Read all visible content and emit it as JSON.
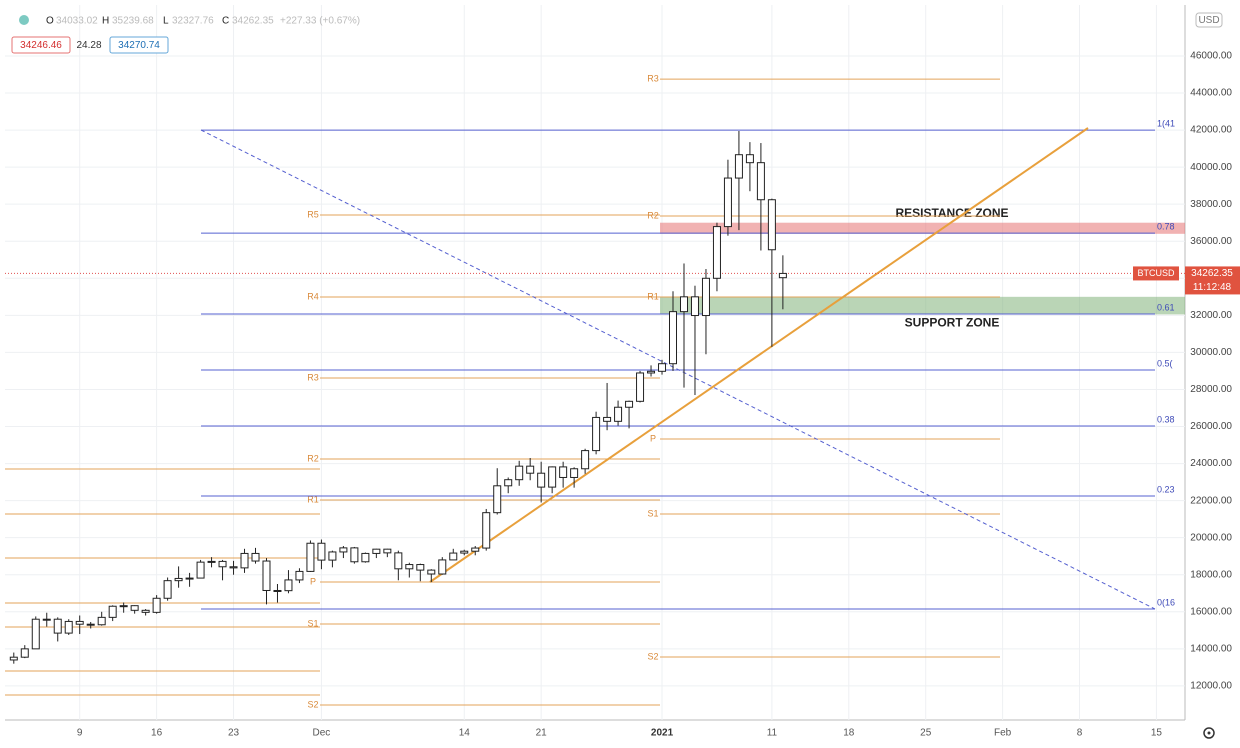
{
  "header": {
    "open_label": "O",
    "high_label": "H",
    "low_label": "L",
    "close_label": "C",
    "change": "+227.33 (+0.67%)",
    "bid": "34246.46",
    "spread": "24.28",
    "ask": "34270.74",
    "currency": "USD"
  },
  "chart_data": {
    "type": "candlestick",
    "symbol": "BTCUSD",
    "countdown": "11:12:48",
    "x": [
      -6,
      -5,
      -4,
      -3,
      -2,
      -1,
      0,
      1,
      2,
      3,
      4,
      5,
      6,
      7,
      8,
      9,
      10,
      11,
      12,
      13,
      14,
      15,
      16,
      17,
      18,
      19,
      20,
      21,
      22,
      23,
      24,
      25,
      26,
      27,
      28,
      29,
      30,
      31,
      32,
      33,
      34,
      35,
      36,
      37,
      38,
      39,
      40,
      41,
      42,
      43,
      44,
      45,
      46,
      47,
      48,
      49,
      50,
      51,
      52,
      53,
      54,
      55,
      56,
      57,
      58,
      59,
      60,
      61,
      62,
      63,
      64
    ],
    "open": [
      13400,
      13550,
      14000,
      15600,
      15600,
      14850,
      15480,
      15330,
      15300,
      15700,
      16300,
      16330,
      16080,
      15970,
      16730,
      17680,
      17800,
      17820,
      18680,
      18720,
      18430,
      18370,
      19150,
      18740,
      17150,
      17140,
      17720,
      18180,
      19700,
      18790,
      19230,
      19450,
      18700,
      19150,
      19380,
      19180,
      18320,
      18550,
      18250,
      18040,
      18800,
      19170,
      19270,
      19440,
      21350,
      22800,
      23130,
      23860,
      23480,
      22730,
      23820,
      23250,
      23720,
      24700,
      26490,
      26280,
      27040,
      27360,
      28890,
      28980,
      29390,
      32200,
      33000,
      31990,
      34000,
      36790,
      39410,
      40670,
      40240,
      38240,
      34033.02
    ],
    "high": [
      13800,
      14200,
      15750,
      15950,
      15700,
      15600,
      15800,
      15450,
      16000,
      16350,
      16500,
      16350,
      16150,
      16900,
      17850,
      18450,
      18100,
      18800,
      18950,
      18800,
      18750,
      19400,
      19450,
      18900,
      17500,
      18250,
      18350,
      19850,
      19900,
      19300,
      19550,
      19500,
      19200,
      19400,
      19400,
      19300,
      18650,
      18600,
      18300,
      18950,
      19400,
      19350,
      19550,
      21550,
      23750,
      23250,
      24150,
      24300,
      24100,
      23850,
      24100,
      23800,
      24800,
      26800,
      28350,
      27400,
      27400,
      29000,
      29300,
      29600,
      33300,
      34800,
      33600,
      34500,
      37000,
      40400,
      41950,
      41350,
      41300,
      38300,
      35239.68
    ],
    "low": [
      13200,
      13500,
      14000,
      15200,
      14400,
      14750,
      14800,
      15100,
      15250,
      15500,
      15950,
      15900,
      15800,
      15900,
      16600,
      17300,
      17350,
      17800,
      18400,
      17700,
      18000,
      18100,
      18600,
      16400,
      16500,
      17000,
      17550,
      18150,
      18300,
      18400,
      18900,
      18600,
      18650,
      18900,
      18950,
      17700,
      17850,
      17650,
      17600,
      18000,
      18800,
      19050,
      19050,
      19300,
      21250,
      22400,
      22800,
      23100,
      21900,
      22400,
      22700,
      22700,
      23450,
      24500,
      25800,
      26050,
      25900,
      27300,
      28700,
      28800,
      29000,
      28100,
      27700,
      29900,
      33300,
      36300,
      36600,
      38700,
      35500,
      30300,
      32327.76
    ],
    "close": [
      13550,
      14000,
      15600,
      15600,
      14850,
      15480,
      15330,
      15300,
      15700,
      16300,
      16330,
      16080,
      15970,
      16730,
      17680,
      17800,
      17820,
      18680,
      18720,
      18430,
      18370,
      19150,
      18740,
      17150,
      17140,
      17720,
      18180,
      19700,
      18790,
      19230,
      19450,
      18700,
      19150,
      19380,
      19180,
      18320,
      18550,
      18250,
      18040,
      18800,
      19170,
      19270,
      19440,
      21350,
      22800,
      23130,
      23860,
      23480,
      22730,
      23820,
      23250,
      23720,
      24700,
      26490,
      26280,
      27040,
      27360,
      28890,
      28980,
      29390,
      32200,
      33000,
      31990,
      34000,
      36790,
      39410,
      40670,
      40240,
      38240,
      35540,
      34262.35
    ],
    "xlim": [
      -6.8,
      100.6
    ],
    "xticks": [
      {
        "value": 0,
        "label": "9"
      },
      {
        "value": 7,
        "label": "16"
      },
      {
        "value": 14,
        "label": "23"
      },
      {
        "value": 22,
        "label": "Dec"
      },
      {
        "value": 35,
        "label": "14"
      },
      {
        "value": 42,
        "label": "21"
      },
      {
        "value": 53,
        "label": "2021"
      },
      {
        "value": 63,
        "label": "11"
      },
      {
        "value": 70,
        "label": "18"
      },
      {
        "value": 77,
        "label": "25"
      },
      {
        "value": 84,
        "label": "Feb"
      },
      {
        "value": 91,
        "label": "8"
      },
      {
        "value": 98,
        "label": "15"
      }
    ],
    "ylim": [
      10160,
      48750
    ],
    "yticks": [
      {
        "value": 12000,
        "label": "12000.00"
      },
      {
        "value": 14000,
        "label": "14000.00"
      },
      {
        "value": 16000,
        "label": "16000.00"
      },
      {
        "value": 18000,
        "label": "18000.00"
      },
      {
        "value": 20000,
        "label": "20000.00"
      },
      {
        "value": 22000,
        "label": "22000.00"
      },
      {
        "value": 24000,
        "label": "24000.00"
      },
      {
        "value": 26000,
        "label": "26000.00"
      },
      {
        "value": 28000,
        "label": "28000.00"
      },
      {
        "value": 30000,
        "label": "30000.00"
      },
      {
        "value": 32000,
        "label": "32000.00"
      },
      {
        "value": 34000,
        "label": "34000.00"
      },
      {
        "value": 36000,
        "label": "36000.00"
      },
      {
        "value": 38000,
        "label": "38000.00"
      },
      {
        "value": 40000,
        "label": "40000.00"
      },
      {
        "value": 42000,
        "label": "42000.00"
      },
      {
        "value": 44000,
        "label": "44000.00"
      },
      {
        "value": 46000,
        "label": "46000.00"
      }
    ],
    "pivots": [
      {
        "levels": [
          {
            "value": 23704
          },
          {
            "value": 21276
          },
          {
            "value": 18901
          },
          {
            "value": 16473
          },
          {
            "value": 15178
          },
          {
            "value": 12803
          },
          {
            "value": 11507
          }
        ]
      },
      {
        "levels": [
          {
            "label": "R5",
            "value": 37413
          },
          {
            "label": "R4",
            "value": 32987
          },
          {
            "label": "R3",
            "value": 28616
          },
          {
            "label": "R2",
            "value": 24245
          },
          {
            "label": "R1",
            "value": 22032
          },
          {
            "label": "P",
            "value": 17607
          },
          {
            "label": "S1",
            "value": 15340
          },
          {
            "label": "S2",
            "value": 10969
          }
        ]
      },
      {
        "levels": [
          {
            "label": "R3",
            "value": 44752
          },
          {
            "label": "R2",
            "value": 37359
          },
          {
            "label": "R1",
            "value": 32987
          },
          {
            "label": "P",
            "value": 25323
          },
          {
            "label": "S1",
            "value": 21276
          },
          {
            "label": "S2",
            "value": 13558
          }
        ]
      }
    ],
    "fib": [
      {
        "label": "1(41",
        "value": 42000
      },
      {
        "label": "0.78",
        "value": 36441
      },
      {
        "label": "0.61",
        "value": 32070
      },
      {
        "label": "0.5(",
        "value": 29047
      },
      {
        "label": "0.38",
        "value": 26025
      },
      {
        "label": "0.23",
        "value": 22247
      },
      {
        "label": "0(16",
        "value": 16149
      }
    ],
    "zones": [
      {
        "label": "RESISTANCE ZONE",
        "from": 36400,
        "to": 37000,
        "color": "#e57373"
      },
      {
        "label": "SUPPORT ZONE",
        "from": 32050,
        "to": 33000,
        "color": "#81b27a"
      }
    ]
  }
}
